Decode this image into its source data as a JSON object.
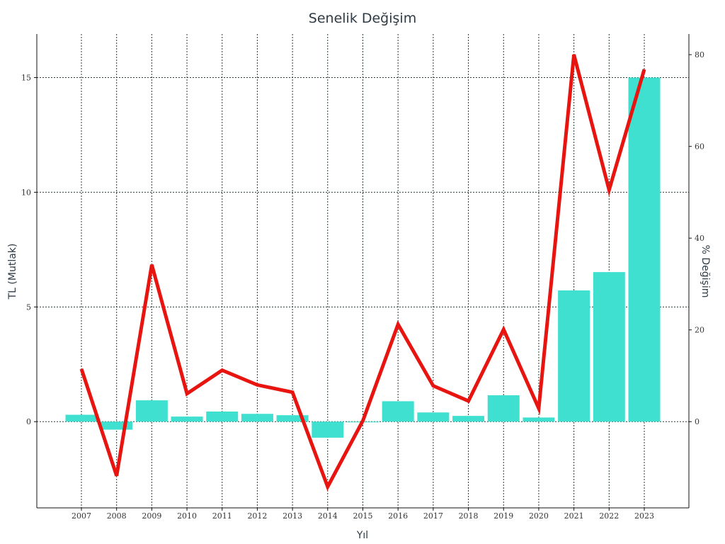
{
  "chart_data": {
    "type": "bar",
    "title": "Senelik Değişim",
    "xlabel": "Yıl",
    "ylabel": "TL (Mutlak)",
    "y2label": "% Değişim",
    "categories": [
      "2007",
      "2008",
      "2009",
      "2010",
      "2011",
      "2012",
      "2013",
      "2014",
      "2015",
      "2016",
      "2017",
      "2018",
      "2019",
      "2020",
      "2021",
      "2022",
      "2023"
    ],
    "ylim": [
      -3.76,
      16.9
    ],
    "y2lim": [
      -18.8,
      84.5
    ],
    "yticks": [
      0,
      5,
      10,
      15
    ],
    "y2ticks": [
      0,
      20,
      40,
      60,
      80
    ],
    "grid": true,
    "series": [
      {
        "kind": "bar",
        "axis": "left",
        "color": "#40e0d0",
        "values": [
          0.3,
          -0.35,
          0.93,
          0.22,
          0.44,
          0.34,
          0.28,
          -0.7,
          0.0,
          0.89,
          0.4,
          0.25,
          1.15,
          0.18,
          5.72,
          6.52,
          15.0
        ]
      },
      {
        "kind": "line",
        "axis": "right",
        "color": "#e8140f",
        "values": [
          11.5,
          -11.8,
          34.2,
          6.1,
          11.2,
          8.0,
          6.4,
          -14.2,
          0.2,
          21.2,
          7.8,
          4.5,
          20.1,
          2.9,
          80.0,
          50.5,
          76.8
        ]
      }
    ]
  }
}
